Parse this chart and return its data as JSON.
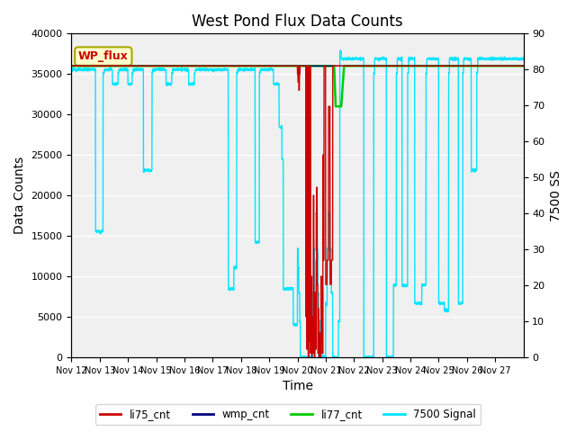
{
  "title": "West Pond Flux Data Counts",
  "xlabel": "Time",
  "ylabel_left": "Data Counts",
  "ylabel_right": "7500 SS",
  "xlim": [
    0,
    16
  ],
  "ylim_left": [
    0,
    40000
  ],
  "ylim_right": [
    0,
    90
  ],
  "x_tick_labels": [
    "Nov 12",
    "Nov 13",
    "Nov 14",
    "Nov 15",
    "Nov 16",
    "Nov 17",
    "Nov 18",
    "Nov 19",
    "Nov 20",
    "Nov 21",
    "Nov 22",
    "Nov 23",
    "Nov 24",
    "Nov 25",
    "Nov 26",
    "Nov 27"
  ],
  "bg_color": "#e8e8e8",
  "plot_bg": "#f0f0f0",
  "annotation_text": "WP_flux",
  "annotation_bg": "#ffffcc",
  "annotation_border": "#aaa800",
  "li77_color": "#00cc00",
  "li75_color": "#cc0000",
  "wmp_color": "#000080",
  "cyan_color": "#00e5ff"
}
